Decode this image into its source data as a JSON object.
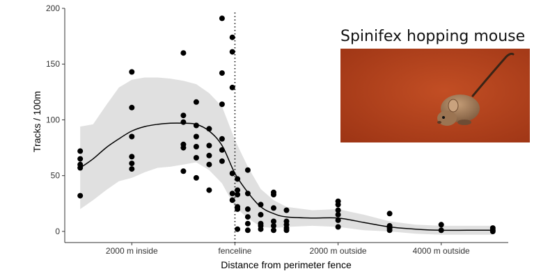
{
  "chart_data": {
    "type": "scatter",
    "title": "",
    "xlabel": "Distance from perimeter fence",
    "ylabel": "Tracks / 100m",
    "xlim": [
      -3300,
      5300
    ],
    "ylim": [
      -10,
      200
    ],
    "grid": false,
    "x_ticks": [
      {
        "value": -2000,
        "label": "2000 m inside"
      },
      {
        "value": 0,
        "label": "fenceline"
      },
      {
        "value": 2000,
        "label": "2000 m outside"
      },
      {
        "value": 4000,
        "label": "4000 m outside"
      }
    ],
    "y_ticks": [
      0,
      50,
      100,
      150,
      200
    ],
    "fenceline_x": 0,
    "points": [
      {
        "x": -3000,
        "y": 72
      },
      {
        "x": -3000,
        "y": 65
      },
      {
        "x": -3000,
        "y": 60
      },
      {
        "x": -3000,
        "y": 57
      },
      {
        "x": -3000,
        "y": 32
      },
      {
        "x": -2000,
        "y": 143
      },
      {
        "x": -2000,
        "y": 111
      },
      {
        "x": -2000,
        "y": 85
      },
      {
        "x": -2000,
        "y": 67
      },
      {
        "x": -2000,
        "y": 61
      },
      {
        "x": -2000,
        "y": 56
      },
      {
        "x": -1000,
        "y": 160
      },
      {
        "x": -1000,
        "y": 104
      },
      {
        "x": -1000,
        "y": 98
      },
      {
        "x": -1000,
        "y": 78
      },
      {
        "x": -1000,
        "y": 75
      },
      {
        "x": -1000,
        "y": 54
      },
      {
        "x": -750,
        "y": 116
      },
      {
        "x": -750,
        "y": 95
      },
      {
        "x": -750,
        "y": 85
      },
      {
        "x": -750,
        "y": 76
      },
      {
        "x": -750,
        "y": 66
      },
      {
        "x": -750,
        "y": 48
      },
      {
        "x": -500,
        "y": 92
      },
      {
        "x": -500,
        "y": 77
      },
      {
        "x": -500,
        "y": 68
      },
      {
        "x": -500,
        "y": 60
      },
      {
        "x": -500,
        "y": 37
      },
      {
        "x": -250,
        "y": 191
      },
      {
        "x": -250,
        "y": 142
      },
      {
        "x": -250,
        "y": 114
      },
      {
        "x": -250,
        "y": 83
      },
      {
        "x": -250,
        "y": 73
      },
      {
        "x": -250,
        "y": 63
      },
      {
        "x": -50,
        "y": 174
      },
      {
        "x": -50,
        "y": 161
      },
      {
        "x": -50,
        "y": 129
      },
      {
        "x": -50,
        "y": 52
      },
      {
        "x": -50,
        "y": 34
      },
      {
        "x": -50,
        "y": 28
      },
      {
        "x": 50,
        "y": 47
      },
      {
        "x": 50,
        "y": 37
      },
      {
        "x": 50,
        "y": 33
      },
      {
        "x": 50,
        "y": 22
      },
      {
        "x": 50,
        "y": 20
      },
      {
        "x": 50,
        "y": 2
      },
      {
        "x": 250,
        "y": 55
      },
      {
        "x": 250,
        "y": 34
      },
      {
        "x": 250,
        "y": 20
      },
      {
        "x": 250,
        "y": 13
      },
      {
        "x": 250,
        "y": 7
      },
      {
        "x": 250,
        "y": 1
      },
      {
        "x": 500,
        "y": 24
      },
      {
        "x": 500,
        "y": 15
      },
      {
        "x": 500,
        "y": 7
      },
      {
        "x": 500,
        "y": 5
      },
      {
        "x": 500,
        "y": 2
      },
      {
        "x": 750,
        "y": 35
      },
      {
        "x": 750,
        "y": 33
      },
      {
        "x": 750,
        "y": 21
      },
      {
        "x": 750,
        "y": 9
      },
      {
        "x": 750,
        "y": 5
      },
      {
        "x": 750,
        "y": 1
      },
      {
        "x": 1000,
        "y": 19
      },
      {
        "x": 1000,
        "y": 9
      },
      {
        "x": 1000,
        "y": 6
      },
      {
        "x": 1000,
        "y": 3
      },
      {
        "x": 1000,
        "y": 1
      },
      {
        "x": 2000,
        "y": 27
      },
      {
        "x": 2000,
        "y": 24
      },
      {
        "x": 2000,
        "y": 19
      },
      {
        "x": 2000,
        "y": 15
      },
      {
        "x": 2000,
        "y": 10
      },
      {
        "x": 2000,
        "y": 4
      },
      {
        "x": 3000,
        "y": 16
      },
      {
        "x": 3000,
        "y": 5
      },
      {
        "x": 3000,
        "y": 4
      },
      {
        "x": 3000,
        "y": 3
      },
      {
        "x": 3000,
        "y": 1
      },
      {
        "x": 4000,
        "y": 6
      },
      {
        "x": 4000,
        "y": 1
      },
      {
        "x": 5000,
        "y": 3
      },
      {
        "x": 5000,
        "y": 1
      },
      {
        "x": 5000,
        "y": 0
      }
    ],
    "trend": [
      {
        "x": -3000,
        "y": 57,
        "lo": 20,
        "hi": 94
      },
      {
        "x": -2750,
        "y": 65,
        "lo": 28,
        "hi": 96
      },
      {
        "x": -2500,
        "y": 75,
        "lo": 37,
        "hi": 113
      },
      {
        "x": -2250,
        "y": 83,
        "lo": 45,
        "hi": 129
      },
      {
        "x": -2000,
        "y": 90,
        "lo": 48,
        "hi": 136
      },
      {
        "x": -1750,
        "y": 94,
        "lo": 53,
        "hi": 138
      },
      {
        "x": -1500,
        "y": 96,
        "lo": 57,
        "hi": 138
      },
      {
        "x": -1250,
        "y": 97,
        "lo": 58,
        "hi": 137
      },
      {
        "x": -1000,
        "y": 97,
        "lo": 60,
        "hi": 135
      },
      {
        "x": -750,
        "y": 96,
        "lo": 62,
        "hi": 132
      },
      {
        "x": -500,
        "y": 90,
        "lo": 55,
        "hi": 124
      },
      {
        "x": -250,
        "y": 77,
        "lo": 43,
        "hi": 112
      },
      {
        "x": 0,
        "y": 52,
        "lo": 22,
        "hi": 82
      },
      {
        "x": 250,
        "y": 35,
        "lo": 12,
        "hi": 58
      },
      {
        "x": 500,
        "y": 22,
        "lo": 4,
        "hi": 38
      },
      {
        "x": 750,
        "y": 16,
        "lo": 3,
        "hi": 28
      },
      {
        "x": 1000,
        "y": 13,
        "lo": 4,
        "hi": 22
      },
      {
        "x": 1500,
        "y": 12,
        "lo": 5,
        "hi": 19
      },
      {
        "x": 2000,
        "y": 12,
        "lo": 4,
        "hi": 20
      },
      {
        "x": 2500,
        "y": 8,
        "lo": 1,
        "hi": 15
      },
      {
        "x": 3000,
        "y": 4,
        "lo": 0,
        "hi": 9
      },
      {
        "x": 3500,
        "y": 2,
        "lo": -2,
        "hi": 6
      },
      {
        "x": 4000,
        "y": 1,
        "lo": -3,
        "hi": 5
      },
      {
        "x": 4500,
        "y": 1,
        "lo": -3,
        "hi": 5
      },
      {
        "x": 5000,
        "y": 1,
        "lo": -3,
        "hi": 5
      }
    ],
    "colors": {
      "points": "#000000",
      "ribbon": "#e0e0e0",
      "line": "#000000",
      "axis": "#333333"
    }
  },
  "inset": {
    "title": "Spinifex hopping mouse",
    "photo_icon": "hopping-mouse-photo",
    "colors": {
      "background": "#b8431f",
      "mouse": "#a07a58"
    }
  }
}
